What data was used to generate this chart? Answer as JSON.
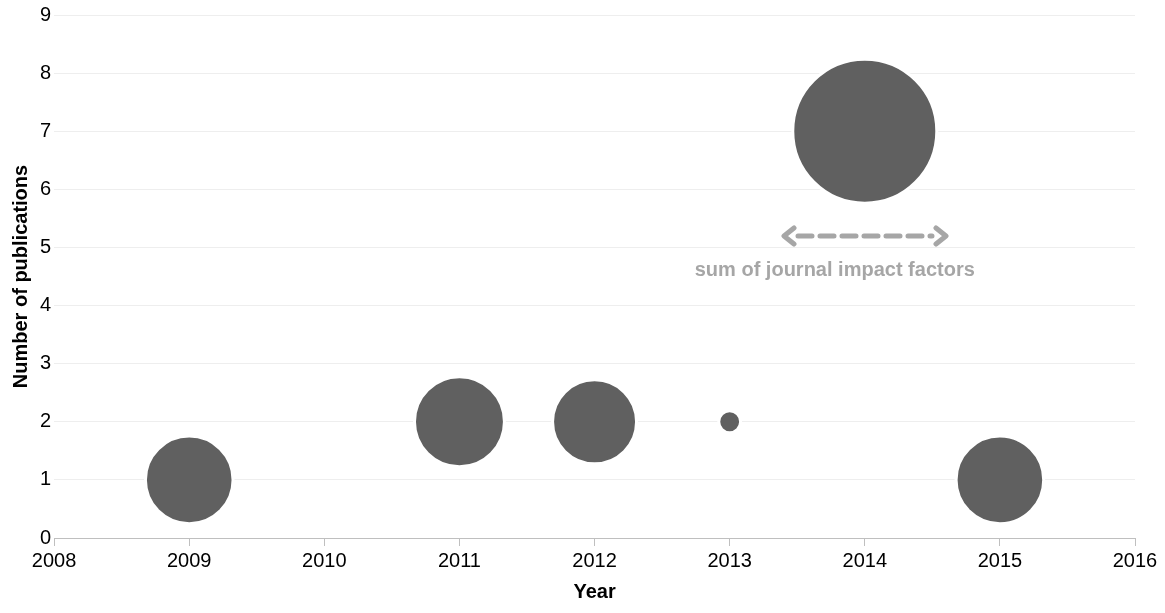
{
  "chart_data": {
    "type": "bubble",
    "xlabel": "Year",
    "ylabel": "Number of publications",
    "x": [
      2009,
      2011,
      2012,
      2013,
      2014,
      2015
    ],
    "values": [
      1,
      2,
      2,
      2,
      7,
      1
    ],
    "sizes": [
      0.37,
      0.39,
      0.34,
      0.023,
      1,
      0.37
    ],
    "color": "#606060",
    "xlim": [
      2008,
      2016
    ],
    "xticks": [
      2008,
      2009,
      2010,
      2011,
      2012,
      2013,
      2014,
      2015,
      2016
    ],
    "ylim": [
      0,
      9
    ],
    "yticks": [
      0,
      1,
      2,
      3,
      4,
      5,
      6,
      7,
      8,
      9
    ],
    "grid": "y",
    "legend": false,
    "annotations": [
      "sum of journal impact factors"
    ]
  }
}
